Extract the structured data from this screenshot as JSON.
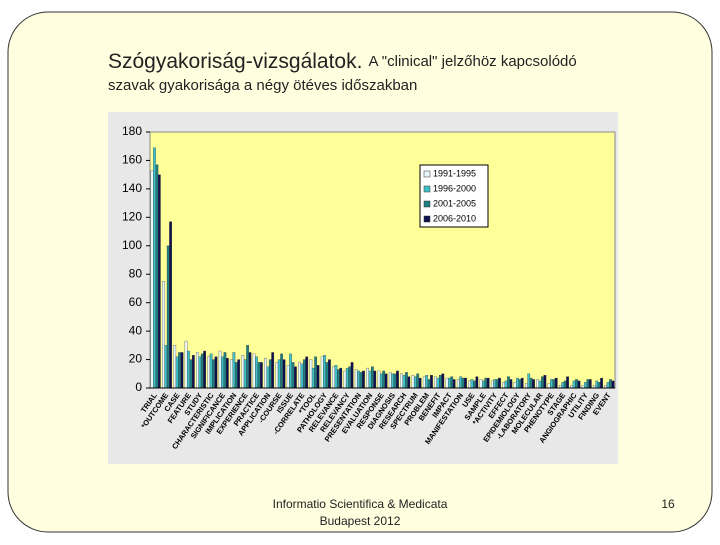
{
  "slide": {
    "title_main": "Szógyakoriság-vizsgálatok.",
    "title_rest": "A \"clinical\" jelzőhöz kapcsolódó",
    "subtitle": "szavak gyakorisága a négy ötéves időszakban",
    "footer_line1": "Informatio Scientifica & Medicata",
    "footer_line2": "Budapest 2012",
    "page_number": "16"
  },
  "chart_data": {
    "type": "bar",
    "categories": [
      "TRIAL",
      "*OUTCOME",
      "CASE",
      "FEATURE",
      "STUDY",
      "CHARACTERISTIC",
      "SIGNIFICANCE",
      "IMPLICATION",
      "EXPERIENCE",
      "PRACTICE",
      "APPLICATION",
      "-COURSE",
      "ISSUE",
      "-CORRELATE",
      "*TOOL",
      "PATHOLOGY",
      "RELEVANCE",
      "RELEVANCY",
      "PRESENTATION",
      "EVALUATION",
      "RESPONSE",
      "DIAGNOSIS",
      "RESEARCH",
      "SPECTRUM",
      "PROBLEM",
      "BENEFIT",
      "IMPACT",
      "MANIFESTATION",
      "USE",
      "SAMPLE",
      "*ACTIVITY",
      "EFFECT",
      "EPIDEMIOLOGY",
      "-LABORATORY",
      "MOLECULAR",
      "PHENOTYPE",
      "STAGE",
      "ANGIOGRAPHIC",
      "UTILITY",
      "FINDING",
      "EVENT"
    ],
    "series": [
      {
        "name": "1991-1995",
        "color": "#e6f6fb",
        "values": [
          153,
          75,
          30,
          33,
          25,
          22,
          26,
          20,
          23,
          24,
          21,
          18,
          16,
          18,
          20,
          22,
          15,
          12,
          13,
          14,
          12,
          11,
          10,
          9,
          8,
          8,
          7,
          6,
          5,
          6,
          5,
          4,
          4,
          3,
          6,
          3,
          2,
          2,
          2,
          2,
          2
        ]
      },
      {
        "name": "1996-2000",
        "color": "#40c0c8",
        "values": [
          169,
          30,
          22,
          26,
          22,
          24,
          22,
          25,
          20,
          22,
          15,
          20,
          24,
          17,
          14,
          23,
          16,
          14,
          12,
          12,
          10,
          10,
          9,
          8,
          9,
          7,
          7,
          8,
          6,
          5,
          6,
          5,
          7,
          10,
          5,
          6,
          4,
          5,
          4,
          5,
          4
        ]
      },
      {
        "name": "2001-2005",
        "color": "#1f7f80",
        "values": [
          157,
          100,
          25,
          20,
          24,
          20,
          25,
          18,
          30,
          18,
          20,
          24,
          18,
          20,
          22,
          18,
          13,
          15,
          11,
          15,
          12,
          10,
          11,
          10,
          6,
          9,
          8,
          7,
          5,
          7,
          6,
          8,
          6,
          7,
          8,
          6,
          5,
          6,
          6,
          4,
          6
        ]
      },
      {
        "name": "2006-2010",
        "color": "#10104e",
        "values": [
          150,
          117,
          25,
          23,
          26,
          22,
          21,
          20,
          25,
          18,
          25,
          20,
          15,
          22,
          16,
          20,
          14,
          18,
          12,
          12,
          10,
          12,
          8,
          7,
          9,
          10,
          6,
          7,
          8,
          7,
          7,
          6,
          7,
          6,
          9,
          7,
          8,
          5,
          6,
          7,
          5
        ]
      }
    ],
    "ylim": [
      0,
      180
    ],
    "yticks": [
      0,
      20,
      40,
      60,
      80,
      100,
      120,
      140,
      160,
      180
    ],
    "plot_color": "#ffff99",
    "legend": "upper-right"
  }
}
